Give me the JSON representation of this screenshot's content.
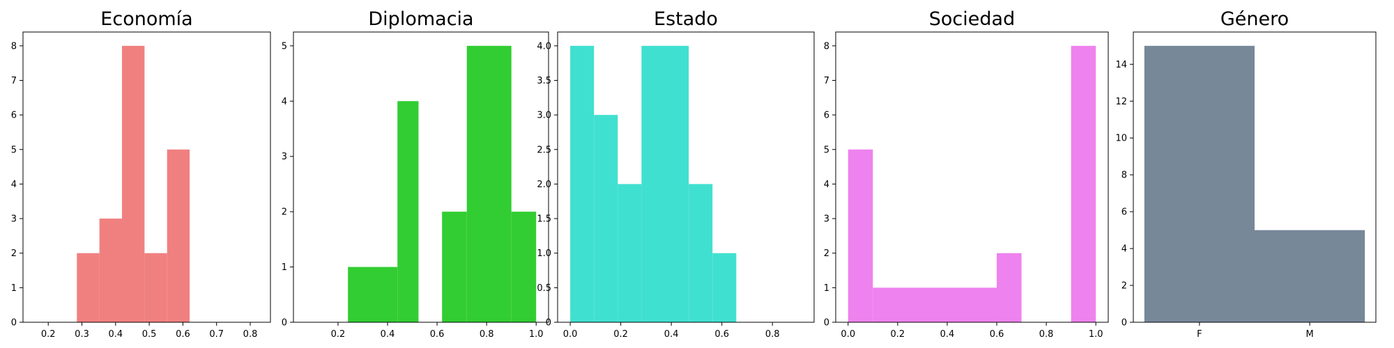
{
  "chart_data": [
    {
      "type": "bar",
      "title": "Economía",
      "color": "#f08080",
      "bins": [
        {
          "x0": 0.285,
          "x1": 0.352,
          "count": 2
        },
        {
          "x0": 0.352,
          "x1": 0.419,
          "count": 3
        },
        {
          "x0": 0.419,
          "x1": 0.486,
          "count": 8
        },
        {
          "x0": 0.486,
          "x1": 0.553,
          "count": 2
        },
        {
          "x0": 0.553,
          "x1": 0.62,
          "count": 5
        }
      ],
      "xlim": [
        0.125,
        0.86
      ],
      "ylim": [
        0,
        8.4
      ],
      "xticks": [
        0.2,
        0.3,
        0.4,
        0.5,
        0.6,
        0.7,
        0.8
      ],
      "xtick_labels": [
        "0.2",
        "0.3",
        "0.4",
        "0.5",
        "0.6",
        "0.7",
        "0.8"
      ],
      "yticks": [
        0,
        1,
        2,
        3,
        4,
        5,
        6,
        7,
        8
      ],
      "ytick_labels": [
        "0",
        "1",
        "2",
        "3",
        "4",
        "5",
        "6",
        "7",
        "8"
      ]
    },
    {
      "type": "bar",
      "title": "Diplomacia",
      "color": "#32cd32",
      "bins": [
        {
          "x0": 0.24,
          "x1": 0.44,
          "count": 1
        },
        {
          "x0": 0.44,
          "x1": 0.525,
          "count": 4
        },
        {
          "x0": 0.62,
          "x1": 0.72,
          "count": 2
        },
        {
          "x0": 0.72,
          "x1": 0.9,
          "count": 5
        },
        {
          "x0": 0.9,
          "x1": 1.0,
          "count": 2
        }
      ],
      "xlim": [
        0.02,
        1.05
      ],
      "ylim": [
        0,
        5.25
      ],
      "xticks": [
        0.2,
        0.4,
        0.6,
        0.8,
        1.0
      ],
      "xtick_labels": [
        "0.2",
        "0.4",
        "0.6",
        "0.8",
        "1.0"
      ],
      "yticks": [
        0,
        1,
        2,
        3,
        4,
        5
      ],
      "ytick_labels": [
        "0",
        "1",
        "2",
        "3",
        "4",
        "5"
      ]
    },
    {
      "type": "bar",
      "title": "Estado",
      "color": "#40e0d0",
      "bins": [
        {
          "x0": 0.0,
          "x1": 0.094,
          "count": 4
        },
        {
          "x0": 0.094,
          "x1": 0.188,
          "count": 3
        },
        {
          "x0": 0.188,
          "x1": 0.282,
          "count": 2
        },
        {
          "x0": 0.282,
          "x1": 0.469,
          "count": 4
        },
        {
          "x0": 0.469,
          "x1": 0.563,
          "count": 2
        },
        {
          "x0": 0.563,
          "x1": 0.657,
          "count": 1
        }
      ],
      "xlim": [
        -0.05,
        0.965
      ],
      "ylim": [
        0,
        4.2
      ],
      "xticks": [
        0.0,
        0.2,
        0.4,
        0.6,
        0.8
      ],
      "xtick_labels": [
        "0.0",
        "0.2",
        "0.4",
        "0.6",
        "0.8"
      ],
      "yticks": [
        0,
        0.5,
        1,
        1.5,
        2,
        2.5,
        3,
        3.5,
        4
      ],
      "ytick_labels": [
        "0",
        "0.5",
        "1.0",
        "1.5",
        "2.0",
        "2.5",
        "3.0",
        "3.5",
        "4.0"
      ]
    },
    {
      "type": "bar",
      "title": "Sociedad",
      "color": "#ee82ee",
      "bins": [
        {
          "x0": 0.0,
          "x1": 0.1,
          "count": 5
        },
        {
          "x0": 0.1,
          "x1": 0.6,
          "count": 1
        },
        {
          "x0": 0.6,
          "x1": 0.7,
          "count": 2
        },
        {
          "x0": 0.9,
          "x1": 1.0,
          "count": 8
        }
      ],
      "xlim": [
        -0.05,
        1.05
      ],
      "ylim": [
        0,
        8.4
      ],
      "xticks": [
        0.0,
        0.2,
        0.4,
        0.6,
        0.8,
        1.0
      ],
      "xtick_labels": [
        "0.0",
        "0.2",
        "0.4",
        "0.6",
        "0.8",
        "1.0"
      ],
      "yticks": [
        0,
        1,
        2,
        3,
        4,
        5,
        6,
        7,
        8
      ],
      "ytick_labels": [
        "0",
        "1",
        "2",
        "3",
        "4",
        "5",
        "6",
        "7",
        "8"
      ]
    },
    {
      "type": "bar",
      "title": "Género",
      "color": "#778899",
      "bins": [
        {
          "x0": 0.0,
          "x1": 0.5,
          "count": 15
        },
        {
          "x0": 0.5,
          "x1": 1.0,
          "count": 5
        }
      ],
      "xlim": [
        -0.05,
        1.05
      ],
      "ylim": [
        0,
        15.75
      ],
      "xticks": [
        0.25,
        0.75
      ],
      "xtick_labels": [
        "F",
        "M"
      ],
      "yticks": [
        0,
        2,
        4,
        6,
        8,
        10,
        12,
        14
      ],
      "ytick_labels": [
        "0",
        "2",
        "4",
        "6",
        "8",
        "10",
        "12",
        "14"
      ]
    }
  ]
}
